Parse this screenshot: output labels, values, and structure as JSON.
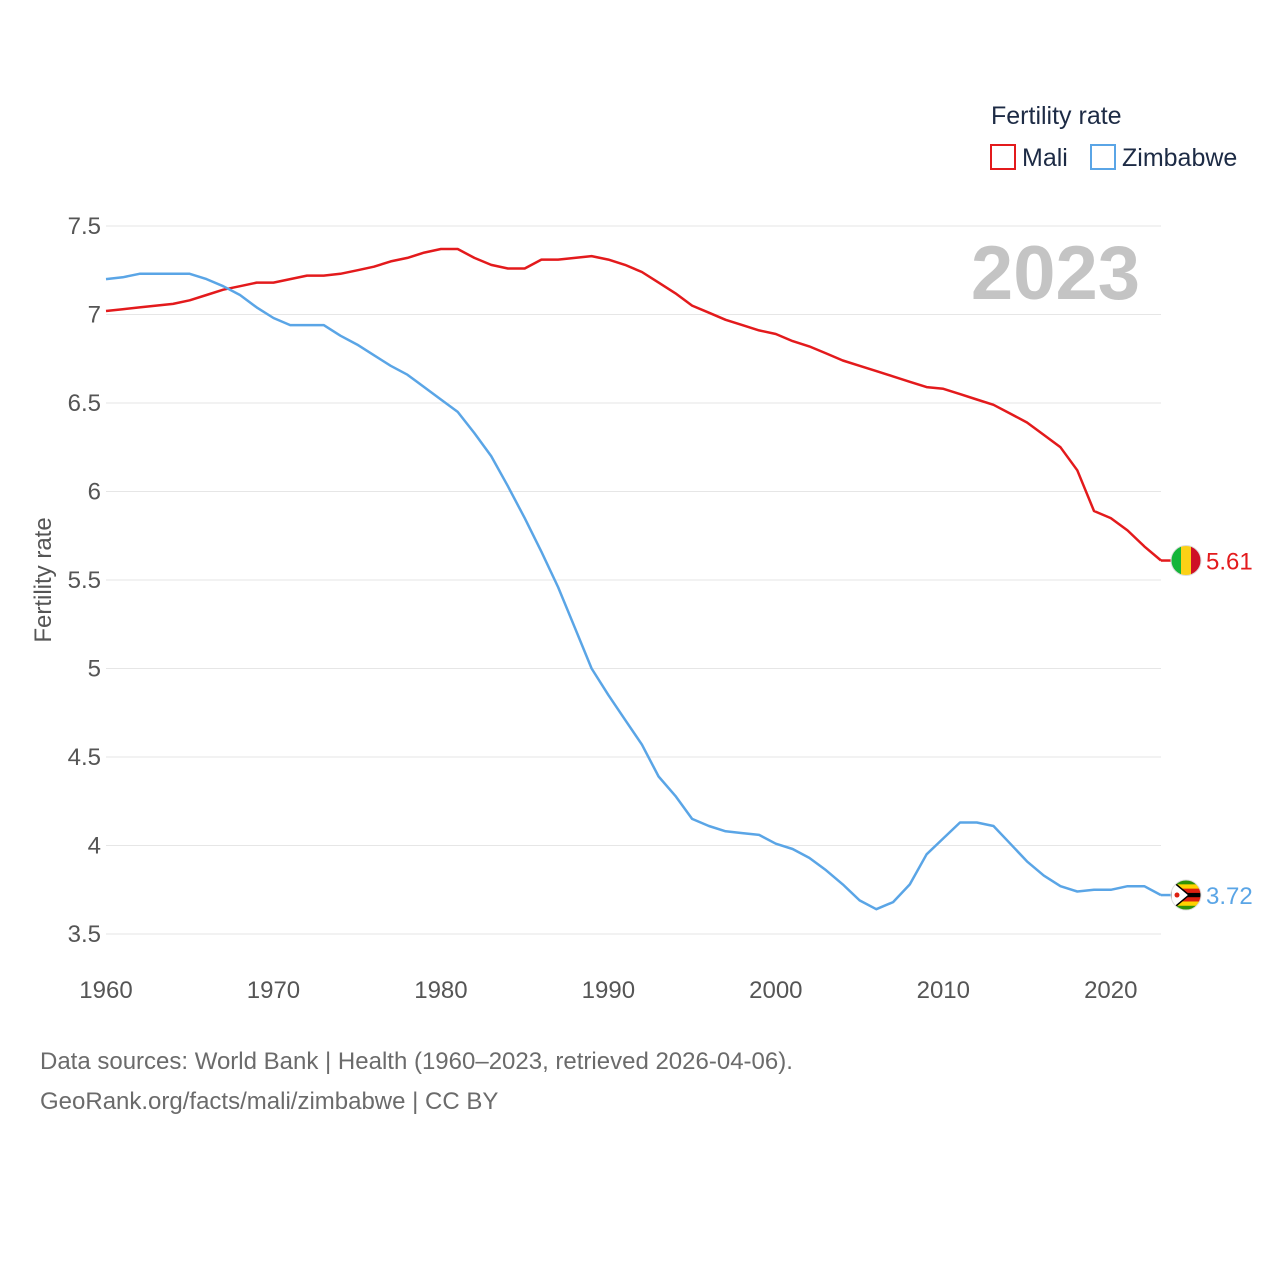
{
  "chart_data": {
    "type": "line",
    "title": "Fertility rate",
    "year_label": "2023",
    "xlabel": "",
    "ylabel": "Fertility rate",
    "xlim": [
      1960,
      2023
    ],
    "ylim": [
      3.5,
      7.5
    ],
    "x_ticks": [
      "1960",
      "1970",
      "1980",
      "1990",
      "2000",
      "2010",
      "2020"
    ],
    "y_ticks": [
      "3.5",
      "4",
      "4.5",
      "5",
      "5.5",
      "6",
      "6.5",
      "7",
      "7.5"
    ],
    "x": [
      1960,
      1961,
      1962,
      1963,
      1964,
      1965,
      1966,
      1967,
      1968,
      1969,
      1970,
      1971,
      1972,
      1973,
      1974,
      1975,
      1976,
      1977,
      1978,
      1979,
      1980,
      1981,
      1982,
      1983,
      1984,
      1985,
      1986,
      1987,
      1988,
      1989,
      1990,
      1991,
      1992,
      1993,
      1994,
      1995,
      1996,
      1997,
      1998,
      1999,
      2000,
      2001,
      2002,
      2003,
      2004,
      2005,
      2006,
      2007,
      2008,
      2009,
      2010,
      2011,
      2012,
      2013,
      2014,
      2015,
      2016,
      2017,
      2018,
      2019,
      2020,
      2021,
      2022,
      2023
    ],
    "series": [
      {
        "name": "Mali",
        "color": "#e31a1c",
        "end_label": "5.61",
        "values": [
          7.02,
          7.03,
          7.04,
          7.05,
          7.06,
          7.08,
          7.11,
          7.14,
          7.16,
          7.18,
          7.18,
          7.2,
          7.22,
          7.22,
          7.23,
          7.25,
          7.27,
          7.3,
          7.32,
          7.35,
          7.37,
          7.37,
          7.32,
          7.28,
          7.26,
          7.26,
          7.31,
          7.31,
          7.32,
          7.33,
          7.31,
          7.28,
          7.24,
          7.18,
          7.12,
          7.05,
          7.01,
          6.97,
          6.94,
          6.91,
          6.89,
          6.85,
          6.82,
          6.78,
          6.74,
          6.71,
          6.68,
          6.65,
          6.62,
          6.59,
          6.58,
          6.55,
          6.52,
          6.49,
          6.44,
          6.39,
          6.32,
          6.25,
          6.12,
          5.89,
          5.85,
          5.78,
          5.69,
          5.61
        ]
      },
      {
        "name": "Zimbabwe",
        "color": "#5aa5e6",
        "end_label": "3.72",
        "values": [
          7.2,
          7.21,
          7.23,
          7.23,
          7.23,
          7.23,
          7.2,
          7.16,
          7.11,
          7.04,
          6.98,
          6.94,
          6.94,
          6.94,
          6.88,
          6.83,
          6.77,
          6.71,
          6.66,
          6.59,
          6.52,
          6.45,
          6.33,
          6.2,
          6.03,
          5.85,
          5.66,
          5.46,
          5.23,
          5.0,
          4.85,
          4.71,
          4.57,
          4.39,
          4.28,
          4.15,
          4.11,
          4.08,
          4.07,
          4.06,
          4.01,
          3.98,
          3.93,
          3.86,
          3.78,
          3.69,
          3.64,
          3.68,
          3.78,
          3.95,
          4.04,
          4.13,
          4.13,
          4.11,
          4.01,
          3.91,
          3.83,
          3.77,
          3.74,
          3.75,
          3.75,
          3.77,
          3.77,
          3.72
        ]
      }
    ],
    "legend_position": "top-right"
  },
  "footer": {
    "sources": "Data sources: World Bank | Health (1960–2023, retrieved 2026-04-06).",
    "credit": "GeoRank.org/facts/mali/zimbabwe | CC BY"
  },
  "flags": {
    "mali": {
      "colors": [
        "#14b53a",
        "#fcd116",
        "#ce1126"
      ]
    },
    "zimbabwe": {
      "colors": [
        "#319208",
        "#ffd200",
        "#de2010",
        "#000000",
        "#ffffff"
      ]
    }
  }
}
